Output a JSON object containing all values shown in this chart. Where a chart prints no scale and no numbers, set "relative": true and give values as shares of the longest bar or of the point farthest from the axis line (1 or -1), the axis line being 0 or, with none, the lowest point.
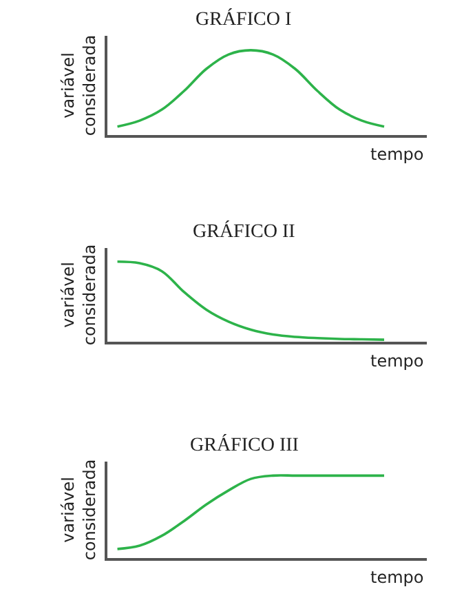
{
  "chart_data": [
    {
      "type": "line",
      "title": "GRÁFICO I",
      "xlabel": "tempo",
      "ylabel": "variável considerada",
      "relative": true,
      "line_style": "solid",
      "categories": [
        null,
        null,
        null,
        null,
        null,
        null,
        null,
        null,
        null,
        null,
        null,
        null,
        null
      ],
      "series": [
        {
          "color": "#2db34a",
          "values": [
            0.1,
            0.17,
            0.3,
            0.52,
            0.78,
            0.95,
            1,
            0.95,
            0.78,
            0.52,
            0.3,
            0.17,
            0.1
          ]
        }
      ]
    },
    {
      "type": "line",
      "title": "GRÁFICO II",
      "xlabel": "tempo",
      "ylabel": "variável considerada",
      "relative": true,
      "line_style": "solid",
      "categories": [
        null,
        null,
        null,
        null,
        null,
        null,
        null,
        null,
        null,
        null,
        null,
        null,
        null
      ],
      "series": [
        {
          "color": "#2db34a",
          "values": [
            1,
            0.98,
            0.88,
            0.62,
            0.4,
            0.25,
            0.15,
            0.09,
            0.06,
            0.045,
            0.035,
            0.03,
            0.025
          ]
        }
      ]
    },
    {
      "type": "line",
      "title": "GRÁFICO III",
      "xlabel": "tempo",
      "ylabel": "variável considerada",
      "relative": true,
      "line_style": "solid",
      "categories": [
        null,
        null,
        null,
        null,
        null,
        null,
        null,
        null,
        null,
        null,
        null,
        null,
        null
      ],
      "series": [
        {
          "color": "#2db34a",
          "values": [
            0.11,
            0.15,
            0.27,
            0.45,
            0.65,
            0.82,
            0.96,
            1,
            1,
            1,
            1,
            1,
            1
          ]
        }
      ]
    }
  ]
}
